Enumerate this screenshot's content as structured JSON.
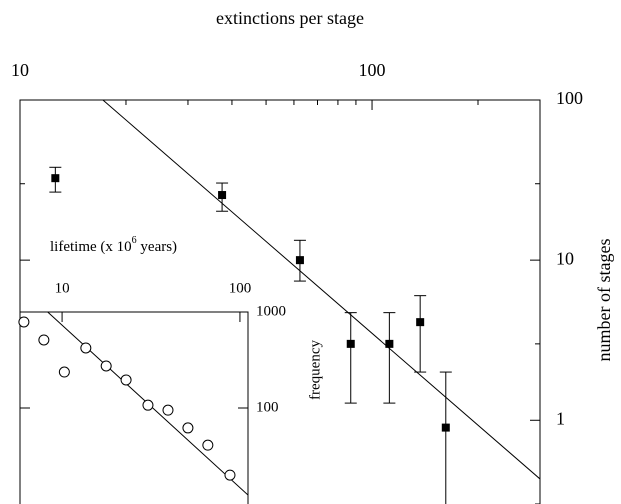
{
  "chart_data": [
    {
      "type": "scatter",
      "title": "extinctions per stage",
      "ylabel": "number of stages",
      "xscale": "log",
      "yscale": "log",
      "xlim": [
        10,
        300
      ],
      "ylim": [
        0.3,
        100
      ],
      "xticks": [
        10,
        100
      ],
      "yticks": [
        1,
        10,
        100
      ],
      "xticks_minor": [
        20,
        30,
        40,
        50,
        60,
        70,
        80,
        90,
        200,
        300
      ],
      "yticks_minor": [
        0.3,
        3,
        30
      ],
      "series": [
        {
          "color": "#000000",
          "marker": "square",
          "x": [
            12.6,
            37.5,
            62.4,
            87,
            112,
            137,
            162
          ],
          "values": [
            32.5,
            25.5,
            10,
            3.0,
            3.0,
            4.1,
            0.9
          ],
          "ylow": [
            26.6,
            20.2,
            7.4,
            1.28,
            1.28,
            2.0,
            0.3
          ],
          "yhigh": [
            38,
            30.3,
            13.3,
            4.7,
            4.7,
            6.0,
            2.0
          ]
        }
      ],
      "fit": {
        "x": [
          17.2,
          300
        ],
        "y": [
          100,
          0.43
        ]
      }
    },
    {
      "type": "scatter",
      "xlabel": [
        "lifetime (x 10",
        "6",
        " years)"
      ],
      "ylabel": "frequency",
      "xscale": "log",
      "yscale": "log",
      "xlim": [
        5.8,
        111
      ],
      "ylim": [
        10,
        1000
      ],
      "xticks": [
        10,
        100
      ],
      "yticks": [
        100,
        1000
      ],
      "series": [
        {
          "color": "#000000",
          "marker": "circle",
          "x": [
            6.1,
            7.9,
            10.3,
            13.6,
            17.7,
            22.9,
            30.4,
            39.4,
            51,
            66,
            87.9
          ],
          "values": [
            787,
            511,
            237,
            422,
            274,
            196,
            107,
            95,
            62,
            41,
            20
          ]
        }
      ],
      "fit": {
        "x": [
          8.3,
          111
        ],
        "y": [
          1000,
          12.4
        ]
      }
    }
  ]
}
